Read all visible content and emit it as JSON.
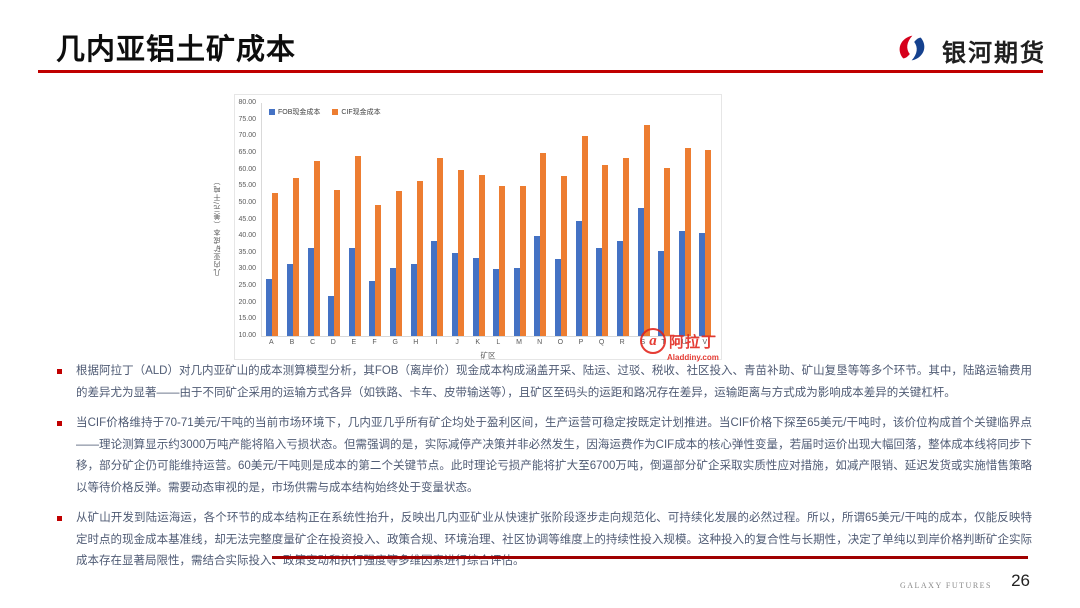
{
  "slide": {
    "title": "几内亚铝土矿成本",
    "logo_text": "银河期货",
    "footer_brand": "GALAXY FUTURES",
    "page_number": "26"
  },
  "chart_data": {
    "type": "bar",
    "title": "",
    "xlabel": "矿区",
    "ylabel": "几内亚矿成本（美元/干吨）",
    "ylim": [
      10,
      80
    ],
    "ytick_step": 5,
    "grid": false,
    "legend_position": "top-left",
    "categories": [
      "A",
      "B",
      "C",
      "D",
      "E",
      "F",
      "G",
      "H",
      "I",
      "J",
      "K",
      "L",
      "M",
      "N",
      "O",
      "P",
      "Q",
      "R",
      "S",
      "T",
      "U",
      "V"
    ],
    "series": [
      {
        "name": "FOB现金成本",
        "color": "#4472C4",
        "values": [
          27,
          31.5,
          36.5,
          22,
          36.5,
          26.5,
          30.5,
          31.5,
          38.5,
          35,
          33.5,
          30,
          30.5,
          40,
          33,
          44.5,
          36.5,
          38.5,
          48.5,
          35.5,
          41.5,
          41
        ]
      },
      {
        "name": "CIF现金成本",
        "color": "#ED7D31",
        "values": [
          53,
          57.5,
          62.5,
          54,
          64,
          49.5,
          53.5,
          56.5,
          63.5,
          60,
          58.5,
          55,
          55,
          65,
          58,
          70,
          61.5,
          63.5,
          73.5,
          60.5,
          66.5,
          66
        ]
      }
    ],
    "watermark": {
      "letter": "a",
      "text": "阿拉丁",
      "subtext": "Aladdiny.com",
      "color": "#E2231A"
    }
  },
  "bullets": [
    "根据阿拉丁（ALD）对几内亚矿山的成本测算模型分析，其FOB（离岸价）现金成本构成涵盖开采、陆运、过驳、税收、社区投入、青苗补助、矿山复垦等等多个环节。其中，陆路运输费用的差异尤为显著——由于不同矿企采用的运输方式各异（如铁路、卡车、皮带输送等），且矿区至码头的运距和路况存在差异，运输距离与方式成为影响成本差异的关键杠杆。",
    "当CIF价格维持于70-71美元/干吨的当前市场环境下，几内亚几乎所有矿企均处于盈利区间，生产运营可稳定按既定计划推进。当CIF价格下探至65美元/干吨时，该价位构成首个关键临界点——理论测算显示约3000万吨产能将陷入亏损状态。但需强调的是，实际减停产决策并非必然发生，因海运费作为CIF成本的核心弹性变量，若届时运价出现大幅回落，整体成本线将同步下移，部分矿企仍可能维持运营。60美元/干吨则是成本的第二个关键节点。此时理论亏损产能将扩大至6700万吨，倒逼部分矿企采取实质性应对措施，如减产限销、延迟发货或实施惜售策略以等待价格反弹。需要动态审视的是，市场供需与成本结构始终处于变量状态。",
    "从矿山开发到陆运海运，各个环节的成本结构正在系统性抬升，反映出几内亚矿业从快速扩张阶段逐步走向规范化、可持续化发展的必然过程。所以，所谓65美元/干吨的成本，仅能反映特定时点的现金成本基准线，却无法完整度量矿企在投资投入、政策合规、环境治理、社区协调等维度上的持续性投入规模。这种投入的复合性与长期性，决定了单纯以到岸价格判断矿企实际成本存在显著局限性，需结合实际投入、政策变动和执行强度等多维因素进行综合评估。"
  ]
}
